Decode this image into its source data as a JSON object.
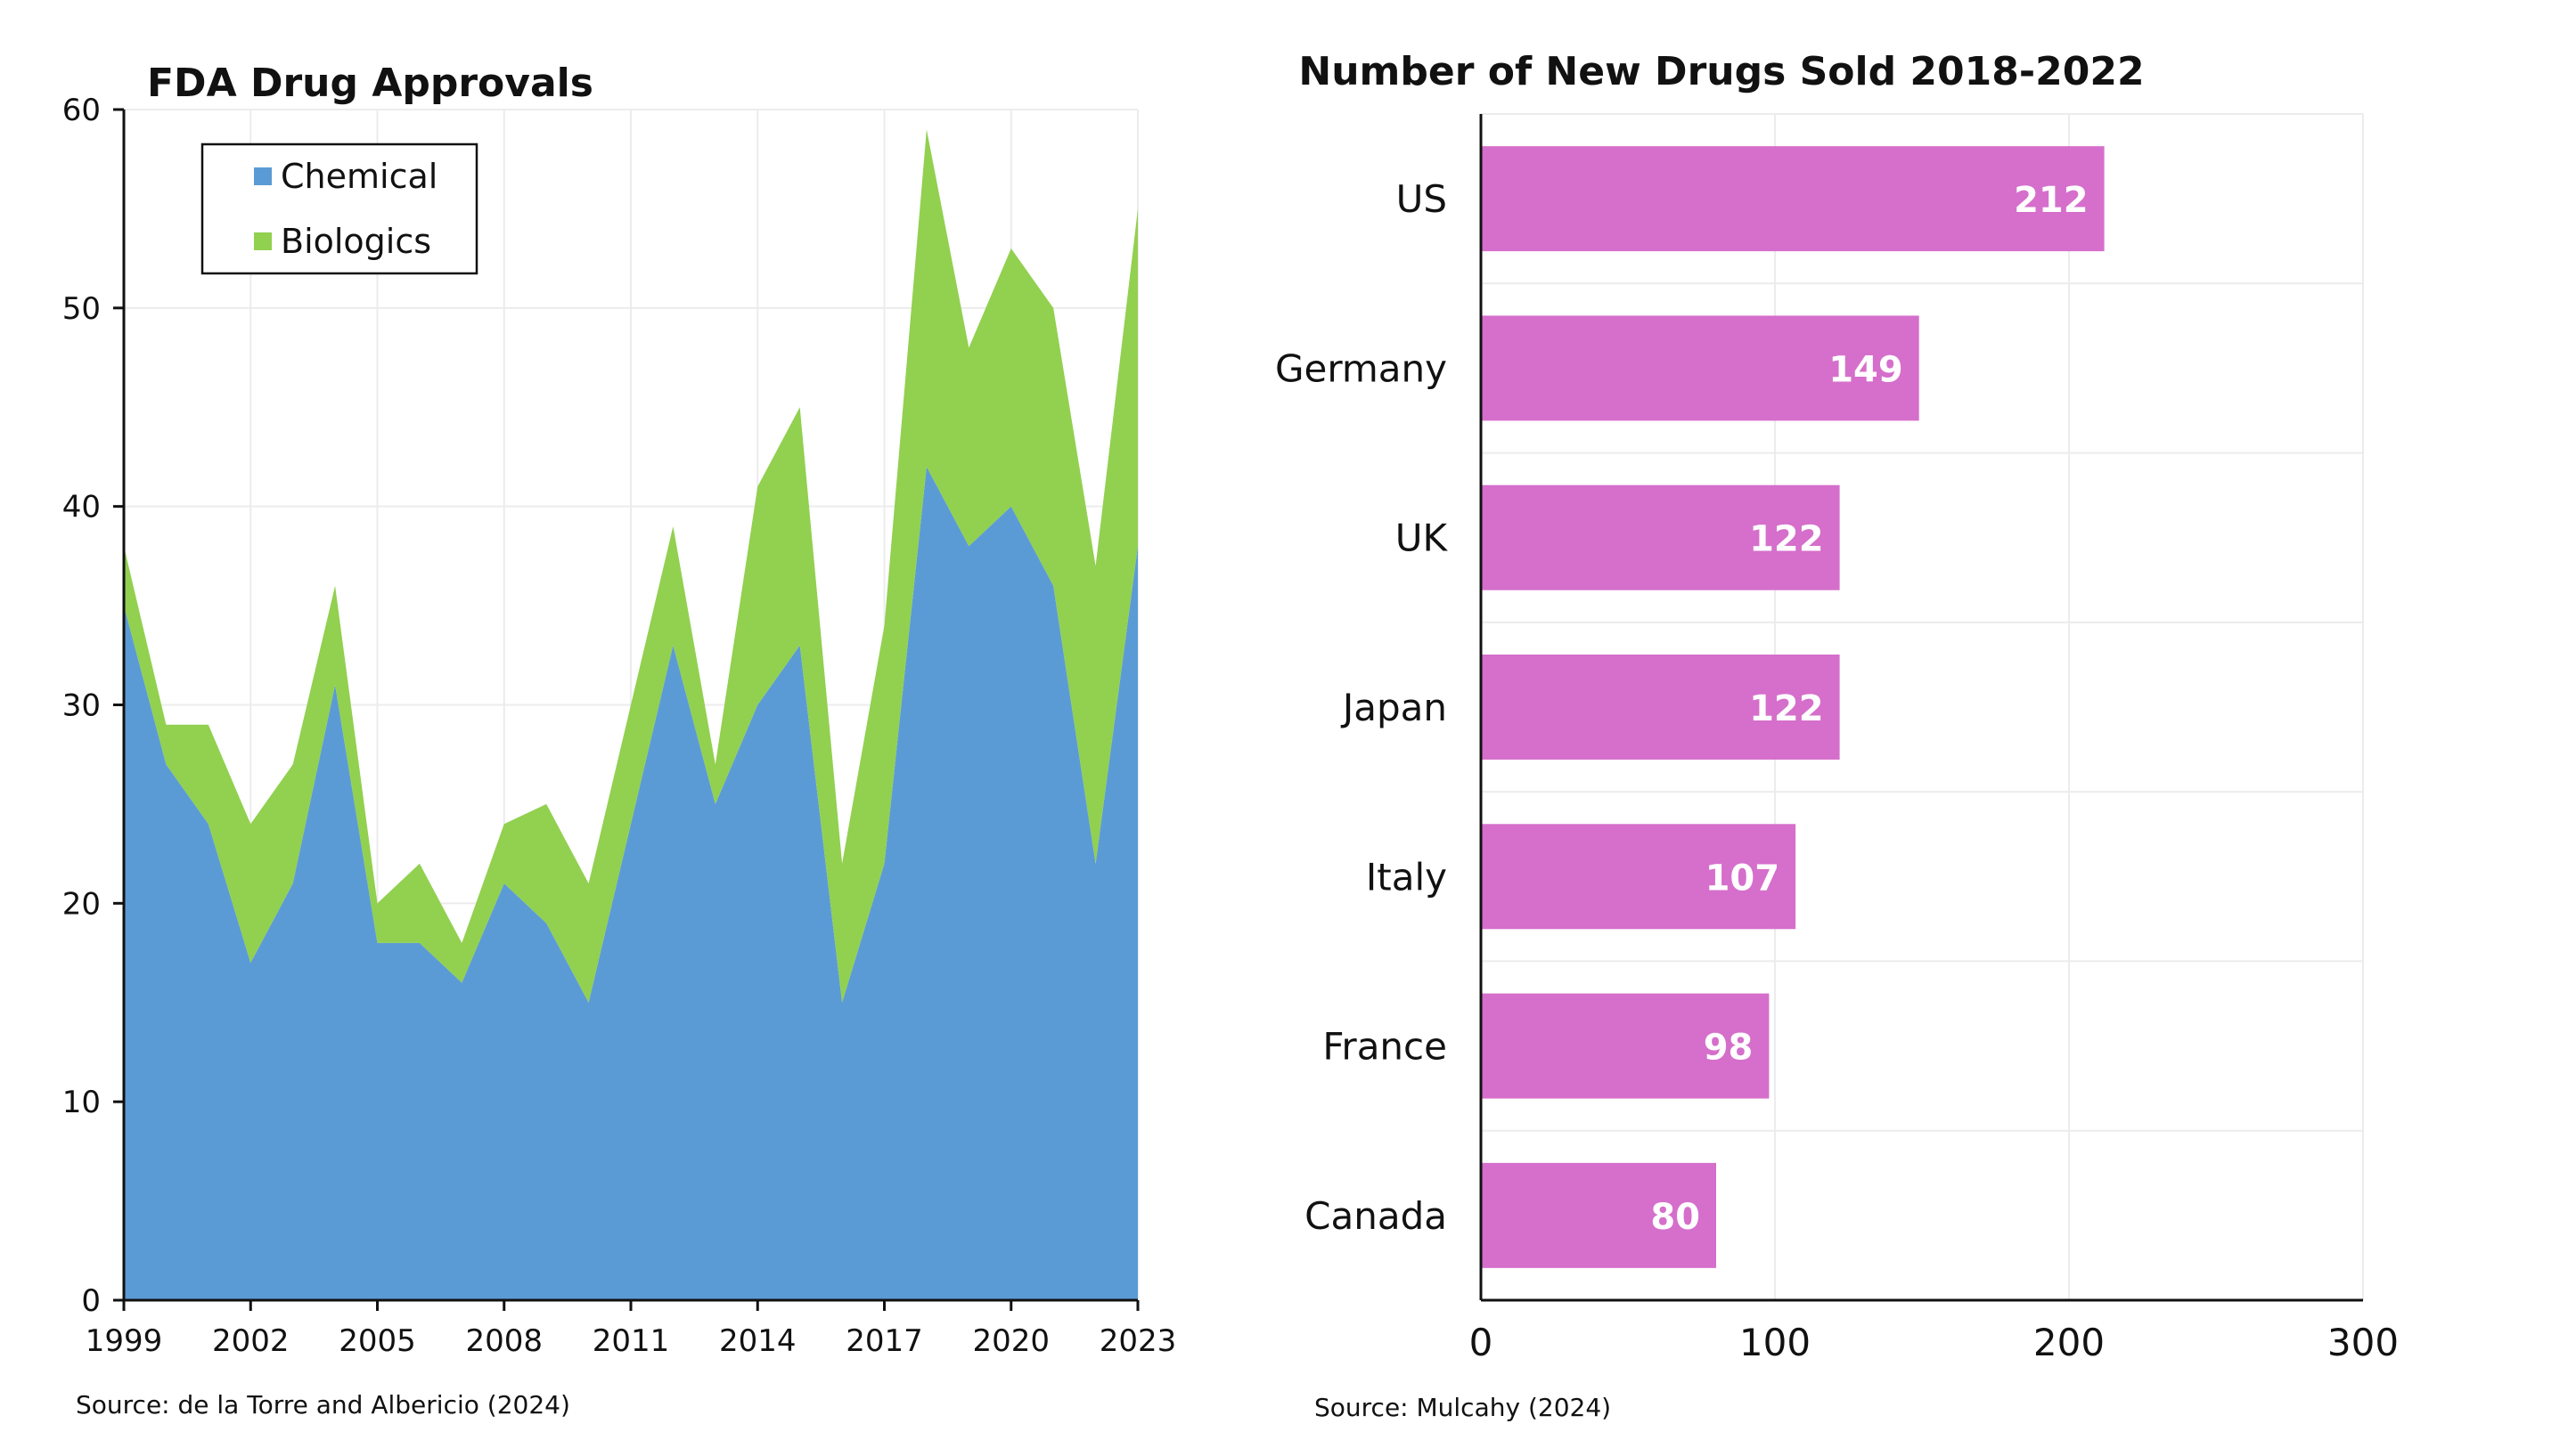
{
  "colors": {
    "chemical": "#5b9bd5",
    "biologics": "#92d050",
    "bars": "#d56fcb"
  },
  "chart_data": [
    {
      "type": "area",
      "title": "FDA Drug Approvals",
      "stacked": true,
      "x": [
        1999,
        2000,
        2001,
        2002,
        2003,
        2004,
        2005,
        2006,
        2007,
        2008,
        2009,
        2010,
        2011,
        2012,
        2013,
        2014,
        2015,
        2016,
        2017,
        2018,
        2019,
        2020,
        2021,
        2022,
        2023
      ],
      "x_tick_labels": [
        "1999",
        "2002",
        "2005",
        "2008",
        "2011",
        "2014",
        "2017",
        "2020",
        "2023"
      ],
      "y_tick_labels": [
        "0",
        "10",
        "20",
        "30",
        "40",
        "50",
        "60"
      ],
      "ylim": [
        0,
        60
      ],
      "xlim": [
        1999,
        2023
      ],
      "series": [
        {
          "name": "Chemical",
          "color": "#5b9bd5",
          "values": [
            35,
            27,
            24,
            17,
            21,
            31,
            18,
            18,
            16,
            21,
            19,
            15,
            24,
            33,
            25,
            30,
            33,
            15,
            22,
            42,
            38,
            40,
            36,
            22,
            38
          ]
        },
        {
          "name": "Biologics",
          "color": "#92d050",
          "values": [
            3,
            2,
            5,
            7,
            6,
            5,
            2,
            4,
            2,
            3,
            6,
            6,
            6,
            6,
            2,
            11,
            12,
            7,
            12,
            17,
            10,
            13,
            14,
            15,
            17
          ]
        }
      ],
      "legend_position": "top-left",
      "grid": true,
      "source": "Source: de la Torre and Albericio (2024)"
    },
    {
      "type": "bar",
      "orientation": "horizontal",
      "title": "Number of New Drugs Sold 2018-2022",
      "categories": [
        "US",
        "Germany",
        "UK",
        "Japan",
        "Italy",
        "France",
        "Canada"
      ],
      "values": [
        212,
        149,
        122,
        122,
        107,
        98,
        80
      ],
      "value_labels": [
        "212",
        "149",
        "122",
        "122",
        "107",
        "98",
        "80"
      ],
      "xlim": [
        0,
        300
      ],
      "x_tick_labels": [
        "0",
        "100",
        "200",
        "300"
      ],
      "grid": true,
      "color": "#d56fcb",
      "source": "Source: Mulcahy (2024)"
    }
  ]
}
